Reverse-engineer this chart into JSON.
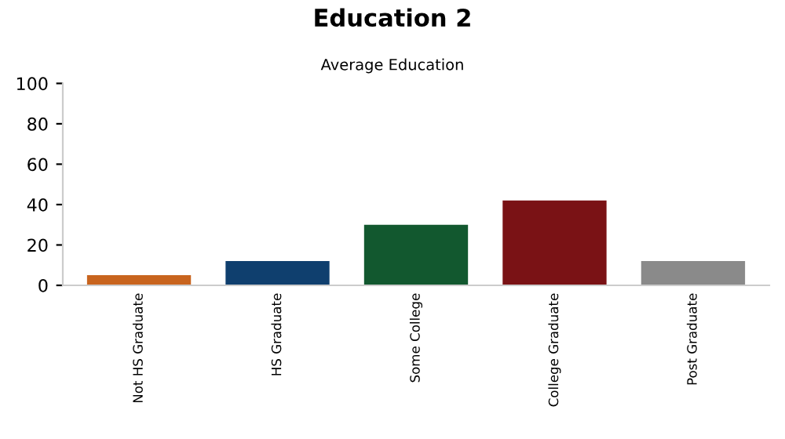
{
  "chart_data": {
    "type": "bar",
    "title": "Education 2",
    "subtitle": "Average Education",
    "categories": [
      "Not HS Graduate",
      "HS Graduate",
      "Some College",
      "College Graduate",
      "Post Graduate"
    ],
    "values": [
      5,
      12,
      30,
      42,
      12
    ],
    "colors": [
      "#c8641e",
      "#0f3f6e",
      "#12582f",
      "#7a1215",
      "#8a8a8a"
    ],
    "ylim": [
      0,
      100
    ],
    "yticks": [
      0,
      20,
      40,
      60,
      80,
      100
    ],
    "grid": false,
    "legend": false
  }
}
